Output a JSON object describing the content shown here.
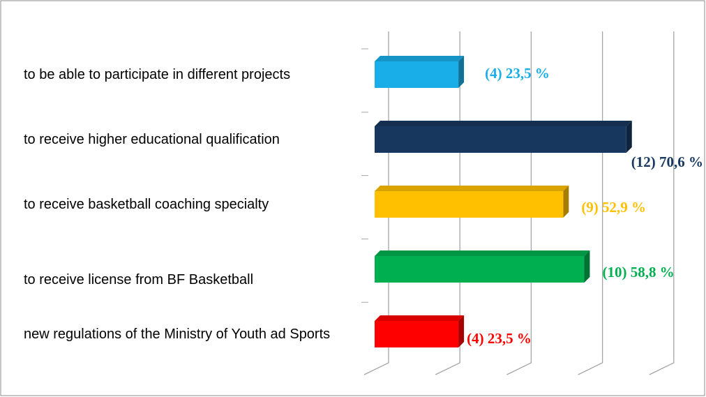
{
  "chart_data": {
    "type": "bar",
    "orientation": "horizontal",
    "categories": [
      "to be able to participate in different projects",
      "to receive higher educational qualification",
      "to receive basketball coaching specialty",
      "to receive license from BF Basketball",
      "new regulations of the Ministry of Youth ad Sports"
    ],
    "values": [
      23.5,
      70.6,
      52.9,
      58.8,
      23.5
    ],
    "value_labels": [
      "(4) 23,5 %",
      "(12) 70,6 %",
      "(9) 52,9 %",
      "(10) 58,8 %",
      "(4) 23,5 %"
    ],
    "colors": [
      "#1aaee8",
      "#17375e",
      "#ffc000",
      "#00b050",
      "#ff0000"
    ],
    "xlim": [
      0,
      80
    ],
    "xticks": [
      0,
      20,
      40,
      60,
      80
    ],
    "grid": true
  }
}
